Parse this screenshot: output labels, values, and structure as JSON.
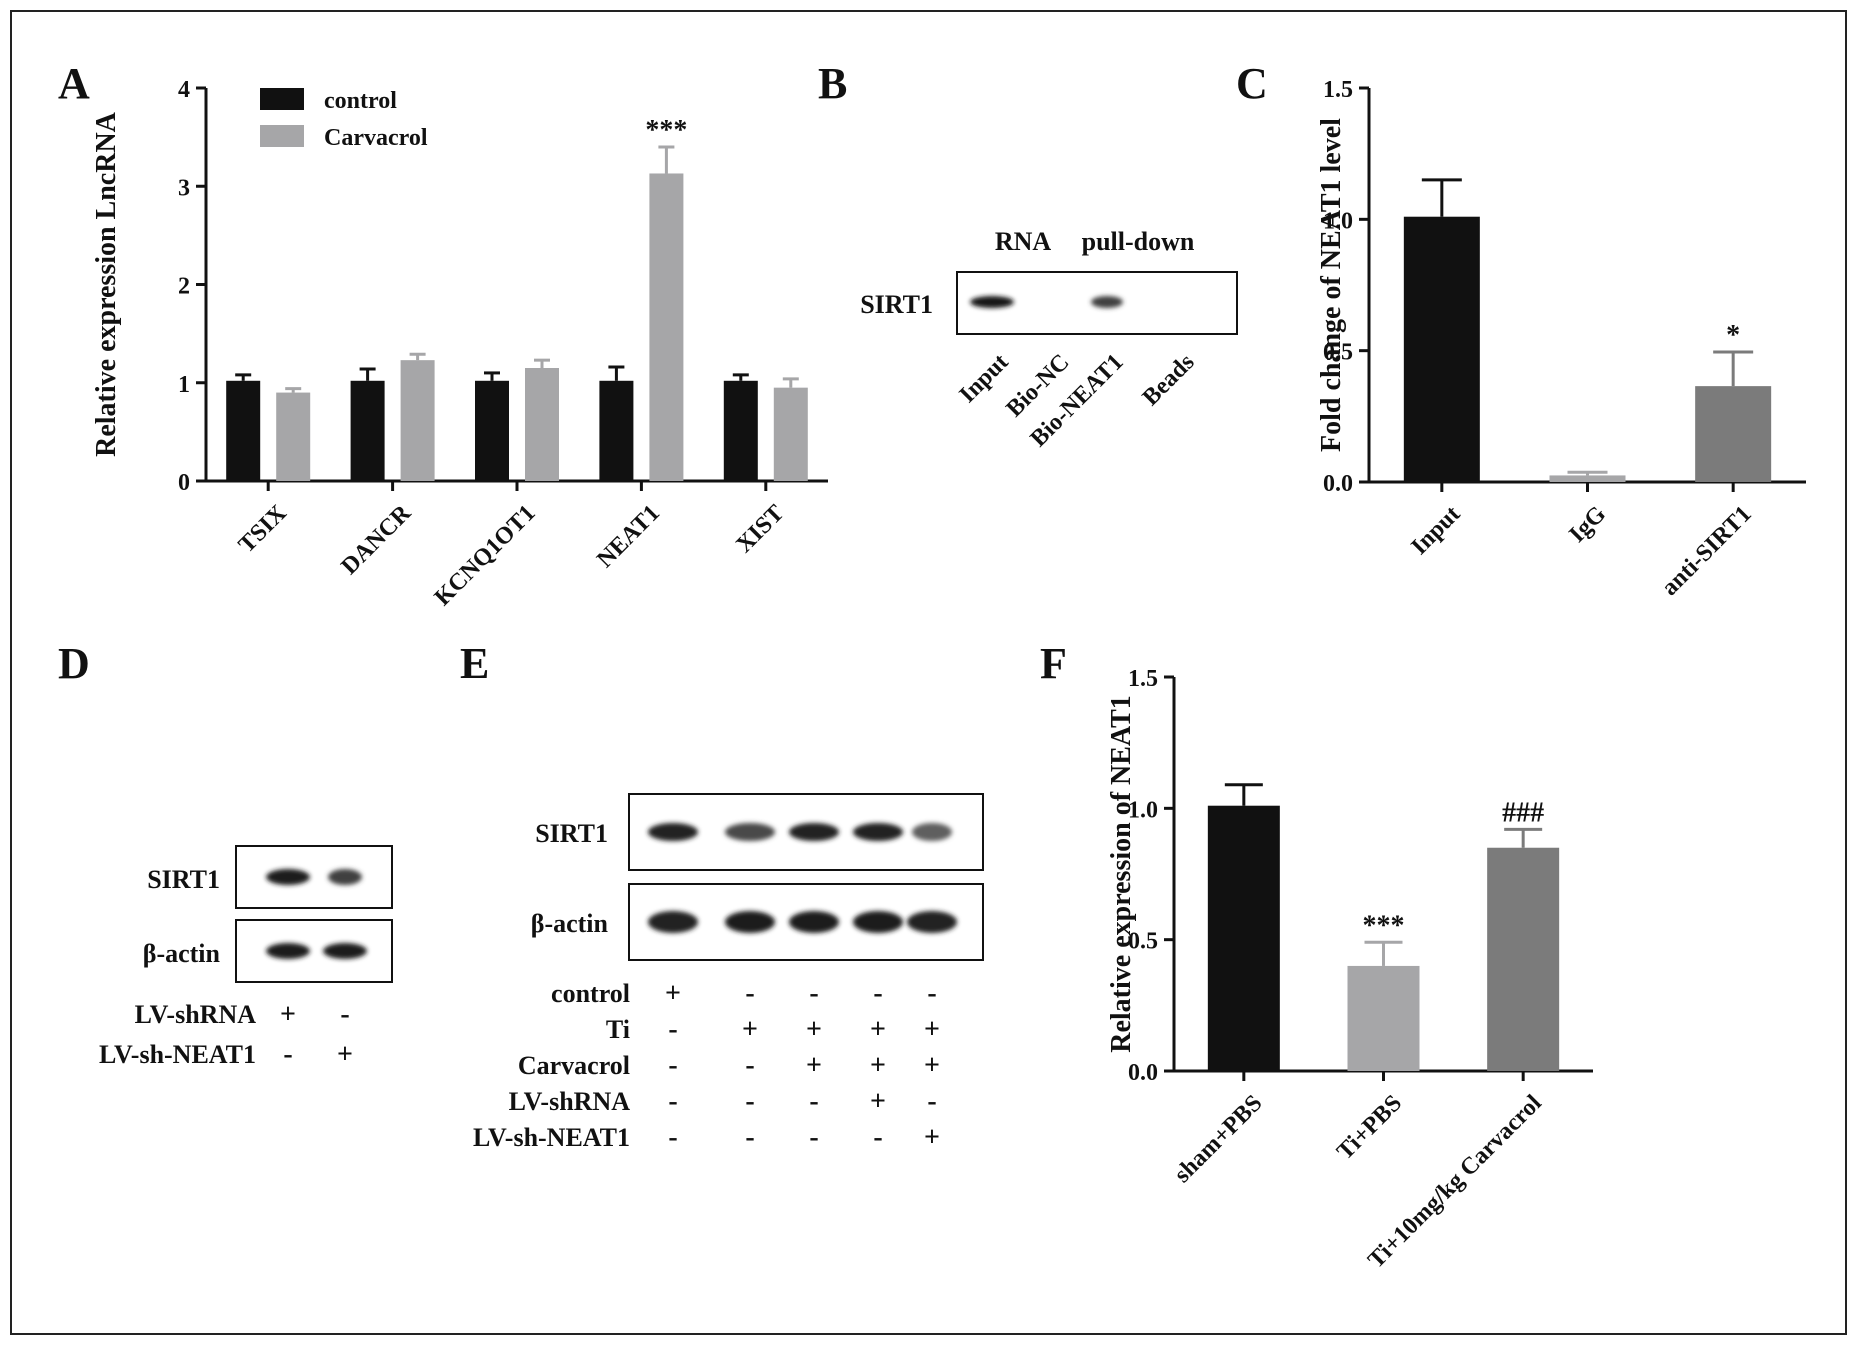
{
  "panels": {
    "A": "A",
    "B": "B",
    "C": "C",
    "D": "D",
    "E": "E",
    "F": "F"
  },
  "chart_data": [
    {
      "panel": "A",
      "type": "bar",
      "ylabel": "Relative expression LncRNA",
      "ylim": [
        0,
        4
      ],
      "yticks": [
        "0",
        "1",
        "2",
        "3",
        "4"
      ],
      "categories": [
        "TSIX",
        "DANCR",
        "KCNQ1OT1",
        "NEAT1",
        "XIST"
      ],
      "series": [
        {
          "name": "control",
          "color": "#111111",
          "values": [
            1.02,
            1.02,
            1.02,
            1.02,
            1.02
          ],
          "errors": [
            0.06,
            0.12,
            0.08,
            0.14,
            0.06
          ]
        },
        {
          "name": "Carvacrol",
          "color": "#a6a6a8",
          "values": [
            0.9,
            1.23,
            1.15,
            3.13,
            0.95
          ],
          "errors": [
            0.04,
            0.06,
            0.08,
            0.27,
            0.09
          ]
        }
      ],
      "annotations": [
        {
          "category": "NEAT1",
          "series": "Carvacrol",
          "text": "***"
        }
      ],
      "legend": "top-left"
    },
    {
      "panel": "C",
      "type": "bar",
      "ylabel": "Fold change of NEAT1 level",
      "ylim": [
        0,
        1.5
      ],
      "yticks": [
        "0.0",
        "0.5",
        "1.0",
        "1.5"
      ],
      "categories": [
        "Input",
        "IgG",
        "anti-SIRT1"
      ],
      "values": [
        1.01,
        0.025,
        0.365
      ],
      "errors": [
        0.14,
        0.012,
        0.13
      ],
      "colors": [
        "#111111",
        "#a6a6a8",
        "#7b7b7b"
      ],
      "annotations": [
        {
          "category": "anti-SIRT1",
          "text": "*"
        }
      ]
    },
    {
      "panel": "F",
      "type": "bar",
      "ylabel": "Relative expression of NEAT1",
      "ylim": [
        0,
        1.5
      ],
      "yticks": [
        "0.0",
        "0.5",
        "1.0",
        "1.5"
      ],
      "categories": [
        "sham+PBS",
        "Ti+PBS",
        "Ti+10mg/kg Carvacrol"
      ],
      "values": [
        1.01,
        0.4,
        0.85
      ],
      "errors": [
        0.08,
        0.09,
        0.07
      ],
      "colors": [
        "#111111",
        "#a6a6a8",
        "#7b7b7b"
      ],
      "annotations": [
        {
          "category": "Ti+PBS",
          "text": "***"
        },
        {
          "category": "Ti+10mg/kg Carvacrol",
          "text": "###"
        }
      ]
    }
  ],
  "blots": {
    "B": {
      "header": [
        "RNA",
        "pull-down"
      ],
      "row_label": "SIRT1",
      "lanes": [
        "Input",
        "Bio-NC",
        "Bio-NEAT1",
        "Beads"
      ],
      "band_intensity": [
        1.0,
        0.0,
        0.7,
        0.0
      ]
    },
    "D": {
      "rows": [
        "SIRT1",
        "β-actin"
      ],
      "band_intensity": [
        [
          0.95,
          0.7
        ],
        [
          0.95,
          0.95
        ]
      ],
      "conditions": [
        {
          "label": "LV-shRNA",
          "signs": [
            "+",
            "-"
          ]
        },
        {
          "label": "LV-sh-NEAT1",
          "signs": [
            "-",
            "+"
          ]
        }
      ]
    },
    "E": {
      "rows": [
        "SIRT1",
        "β-actin"
      ],
      "band_intensity": [
        [
          0.9,
          0.65,
          0.9,
          0.9,
          0.5
        ],
        [
          0.9,
          0.95,
          0.95,
          0.95,
          0.9
        ]
      ],
      "conditions": [
        {
          "label": "control",
          "signs": [
            "+",
            "-",
            "-",
            "-",
            "-"
          ]
        },
        {
          "label": "Ti",
          "signs": [
            "-",
            "+",
            "+",
            "+",
            "+"
          ]
        },
        {
          "label": "Carvacrol",
          "signs": [
            "-",
            "-",
            "+",
            "+",
            "+"
          ]
        },
        {
          "label": "LV-shRNA",
          "signs": [
            "-",
            "-",
            "-",
            "+",
            "-"
          ]
        },
        {
          "label": "LV-sh-NEAT1",
          "signs": [
            "-",
            "-",
            "-",
            "-",
            "+"
          ]
        }
      ]
    }
  }
}
